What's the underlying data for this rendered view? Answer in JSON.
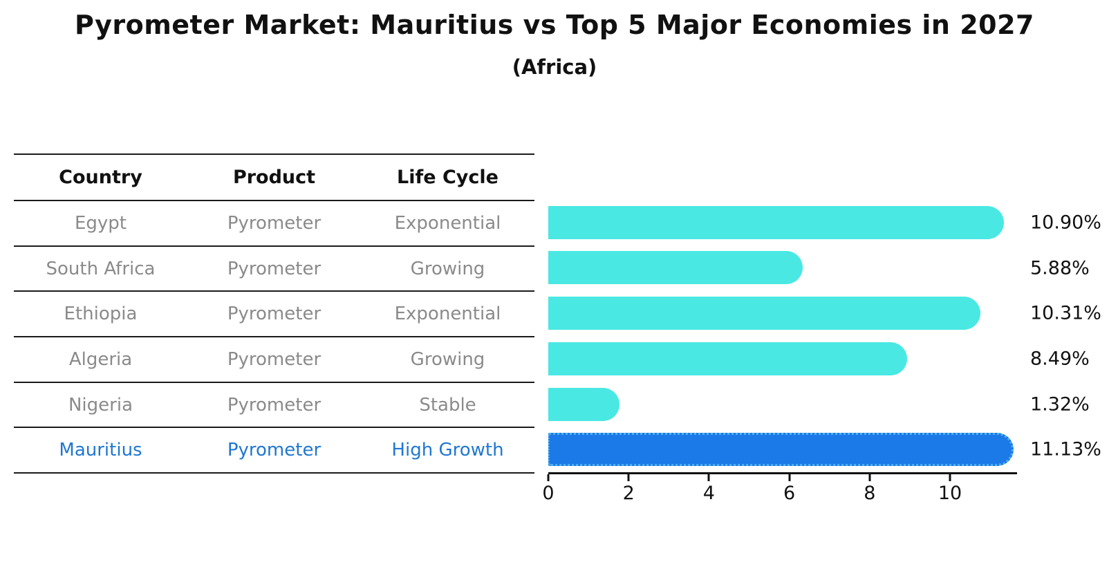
{
  "title": "Pyrometer Market: Mauritius vs Top 5 Major Economies in 2027",
  "subtitle": "(Africa)",
  "table": {
    "headers": [
      "Country",
      "Product",
      "Life Cycle"
    ],
    "rows": [
      {
        "country": "Egypt",
        "product": "Pyrometer",
        "life_cycle": "Exponential",
        "highlight": false
      },
      {
        "country": "South Africa",
        "product": "Pyrometer",
        "life_cycle": "Growing",
        "highlight": false
      },
      {
        "country": "Ethiopia",
        "product": "Pyrometer",
        "life_cycle": "Exponential",
        "highlight": false
      },
      {
        "country": "Algeria",
        "product": "Pyrometer",
        "life_cycle": "Growing",
        "highlight": false
      },
      {
        "country": "Nigeria",
        "product": "Pyrometer",
        "life_cycle": "Stable",
        "highlight": false
      },
      {
        "country": "Mauritius",
        "product": "Pyrometer",
        "life_cycle": "High Growth",
        "highlight": true
      }
    ]
  },
  "chart_data": {
    "type": "bar",
    "orientation": "horizontal",
    "title": "Pyrometer Market: Mauritius vs Top 5 Major Economies in 2027",
    "subtitle": "(Africa)",
    "categories": [
      "Egypt",
      "South Africa",
      "Ethiopia",
      "Algeria",
      "Nigeria",
      "Mauritius"
    ],
    "values": [
      10.9,
      5.88,
      10.31,
      8.49,
      1.32,
      11.13
    ],
    "value_labels": [
      "10.90%",
      "5.88%",
      "10.31%",
      "8.49%",
      "1.32%",
      "11.13%"
    ],
    "unit": "percent",
    "highlight_category": "Mauritius",
    "xticks": [
      "0",
      "2",
      "4",
      "6",
      "8",
      "10"
    ],
    "xtick_values": [
      0,
      2,
      4,
      6,
      8,
      10
    ],
    "xlim": [
      0,
      11.7
    ],
    "grid": false,
    "legend": false,
    "colors": {
      "bar": "#4ae8e2",
      "highlight_bar": "#1c79e8",
      "highlight_text": "#1f77d1",
      "table_text": "#8a8a8a",
      "axis": "#111111"
    }
  }
}
